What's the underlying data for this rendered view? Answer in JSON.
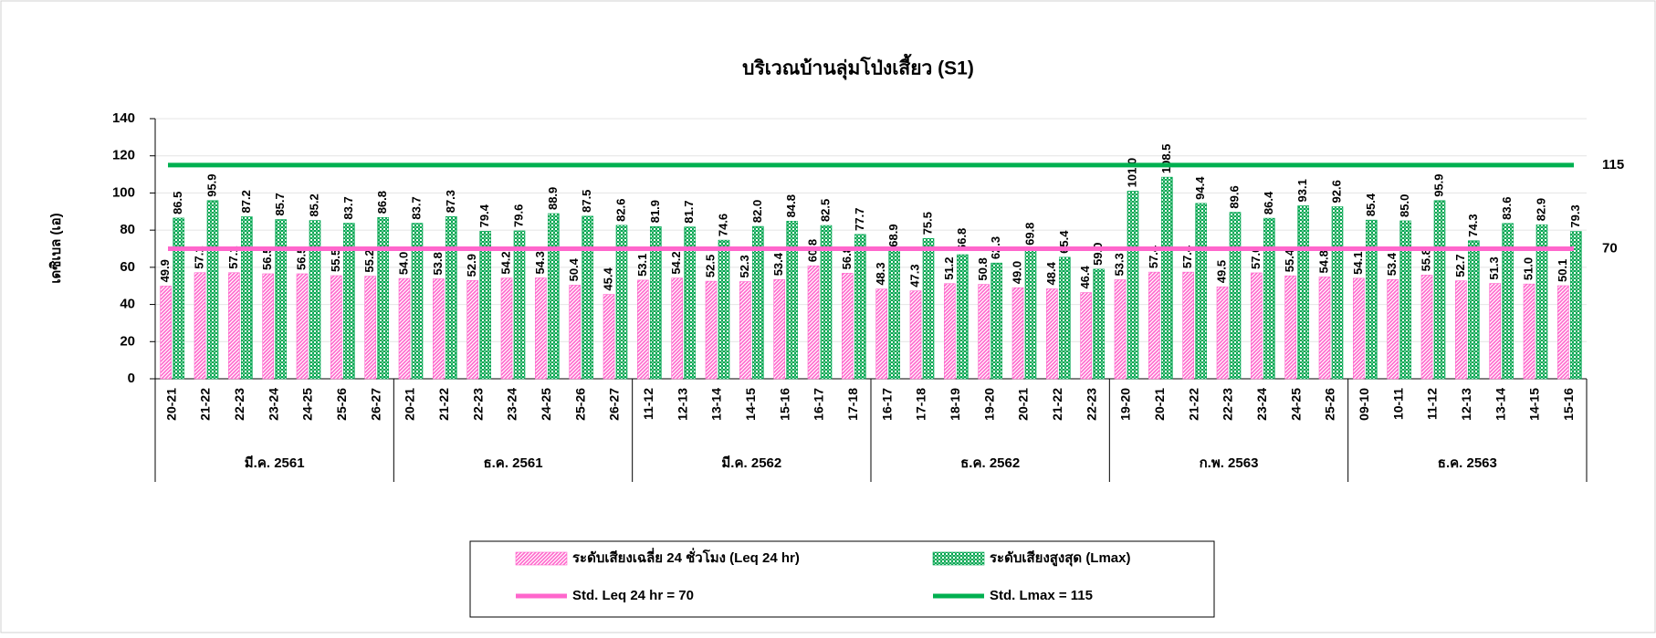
{
  "chart_data": {
    "type": "bar",
    "title": "บริเวณบ้านลุ่มโป่งเสี้ยว (S1)",
    "y_label": "เดซิเบล (เอ)",
    "categories": [
      "20-21",
      "21-22",
      "22-23",
      "23-24",
      "24-25",
      "25-26",
      "26-27",
      "20-21",
      "21-22",
      "22-23",
      "23-24",
      "24-25",
      "25-26",
      "26-27",
      "11-12",
      "12-13",
      "13-14",
      "14-15",
      "15-16",
      "16-17",
      "17-18",
      "16-17",
      "17-18",
      "18-19",
      "19-20",
      "20-21",
      "21-22",
      "22-23",
      "19-20",
      "20-21",
      "21-22",
      "22-23",
      "23-24",
      "24-25",
      "25-26",
      "09-10",
      "10-11",
      "11-12",
      "12-13",
      "13-14",
      "14-15",
      "15-16"
    ],
    "group_labels": [
      "มี.ค. 2561",
      "ธ.ค. 2561",
      "มี.ค. 2562",
      "ธ.ค. 2562",
      "ก.พ. 2563",
      "ธ.ค. 2563"
    ],
    "series": [
      {
        "name": "ระดับเสียงเฉลี่ย 24 ชั่วโมง (Leq 24 hr)",
        "color": "#ff66cc",
        "values": [
          49.9,
          57.1,
          57.1,
          56.5,
          56.5,
          55.5,
          55.2,
          54.0,
          53.8,
          52.9,
          54.2,
          54.3,
          50.4,
          45.4,
          53.1,
          54.2,
          52.5,
          52.3,
          53.4,
          60.8,
          56.8,
          48.3,
          47.3,
          51.2,
          50.8,
          49.0,
          48.4,
          46.4,
          53.3,
          57.4,
          57.4,
          49.5,
          57.0,
          55.4,
          54.8,
          54.1,
          53.4,
          55.8,
          52.7,
          51.3,
          51.0,
          50.1
        ],
        "value_labels": [
          "49.9",
          "57.1",
          "57.1",
          "56.5",
          "56.5",
          "55.5",
          "55.2",
          "54.0",
          "53.8",
          "52.9",
          "54.2",
          "54.3",
          "50.4",
          "45.4",
          "53.1",
          "54.2",
          "52.5",
          "52.3",
          "53.4",
          "60.8",
          "56.8",
          "48.3",
          "47.3",
          "51.2",
          "50.8",
          "49.0",
          "48.4",
          "46.4",
          "53.3",
          "57.4",
          "57.4",
          "49.5",
          "57.0",
          "55.4",
          "54.8",
          "54.1",
          "53.4",
          "55.8",
          "52.7",
          "51.3",
          "51.0",
          "50.1"
        ]
      },
      {
        "name": "ระดับเสียงสูงสุด (Lmax)",
        "color": "#00a650",
        "values": [
          86.5,
          95.9,
          87.2,
          85.7,
          85.2,
          83.7,
          86.8,
          83.7,
          87.3,
          79.4,
          79.6,
          88.9,
          87.5,
          82.6,
          81.9,
          81.7,
          74.6,
          82.0,
          84.8,
          82.5,
          77.7,
          68.9,
          75.5,
          66.8,
          62.3,
          69.8,
          65.4,
          59.0,
          101.0,
          108.5,
          94.4,
          89.6,
          86.4,
          93.1,
          92.6,
          85.4,
          85.0,
          95.9,
          74.3,
          83.6,
          82.9,
          79.3
        ],
        "value_labels": [
          "86.5",
          "95.9",
          "87.2",
          "85.7",
          "85.2",
          "83.7",
          "86.8",
          "83.7",
          "87.3",
          "79.4",
          "79.6",
          "88.9",
          "87.5",
          "82.6",
          "81.9",
          "81.7",
          "74.6",
          "82.0",
          "84.8",
          "82.5",
          "77.7",
          "68.9",
          "75.5",
          "66.8",
          "62.3",
          "69.8",
          "65.4",
          "59.0",
          "101.0",
          "108.5",
          "94.4",
          "89.6",
          "86.4",
          "93.1",
          "92.6",
          "85.4",
          "85.0",
          "95.9",
          "74.3",
          "83.6",
          "82.9",
          "79.3"
        ]
      }
    ],
    "reference_lines": [
      {
        "name": "Std. Leq 24 hr = 70",
        "value": 70,
        "color": "#ff66cc"
      },
      {
        "name": "Std. Lmax = 115",
        "value": 115,
        "color": "#00b050"
      }
    ],
    "ylim": [
      0,
      140
    ],
    "yticks": [
      0,
      20,
      40,
      60,
      80,
      100,
      120,
      140
    ],
    "grid": true
  }
}
